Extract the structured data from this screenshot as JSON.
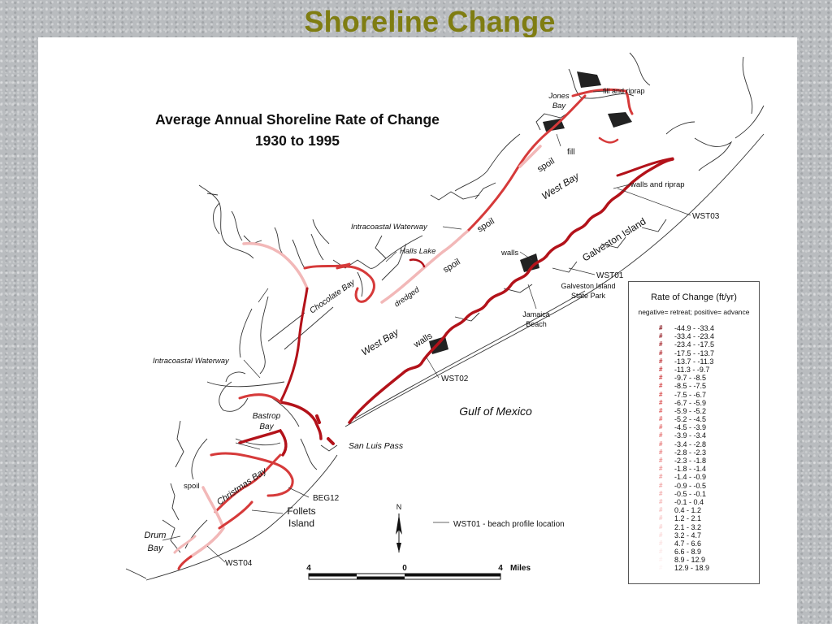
{
  "slide_title": "Shoreline Change",
  "map": {
    "title_line1": "Average Annual Shoreline Rate of Change",
    "title_line2": "1930 to 1995",
    "labels": {
      "jones_bay_1": "Jones",
      "jones_bay_2": "Bay",
      "fill_riprap": "fill and riprap",
      "fill": "fill",
      "spoil_1": "spoil",
      "west_bay_upper": "West Bay",
      "walls_riprap": "walls and riprap",
      "wst03": "WST03",
      "galveston_island": "Galveston Island",
      "spoil_2": "spoil",
      "intracoastal_upper": "Intracoastal Waterway",
      "halls_lake": "Halls Lake",
      "walls_1": "walls",
      "spoil_3": "spoil",
      "wst01": "WST01",
      "gi_state_park_1": "Galveston Island",
      "gi_state_park_2": "State Park",
      "chocolate_bay": "Chocolate Bay",
      "dredged": "dredged",
      "jamaica_1": "Jamaica",
      "jamaica_2": "Beach",
      "west_bay_lower": "West Bay",
      "walls_2": "walls",
      "intracoastal_lower": "Intracoastal Waterway",
      "wst02": "WST02",
      "gulf": "Gulf of Mexico",
      "bastrop_1": "Bastrop",
      "bastrop_2": "Bay",
      "san_luis": "San Luis Pass",
      "christmas_bay": "Christmas Bay",
      "spoil_4": "spoil",
      "beg12": "BEG12",
      "follets_1": "Follets",
      "follets_2": "Island",
      "drum_1": "Drum",
      "drum_2": "Bay",
      "wst04": "WST04",
      "north": "N",
      "profile_note": "WST01 - beach profile location"
    },
    "scale_bar": {
      "left": "4",
      "mid": "0",
      "right": "4",
      "unit": "Miles"
    },
    "colors": {
      "retreat_strong": "#b3121a",
      "retreat": "#d63a3a",
      "advance": "#f2b8b8",
      "land_line": "#333333"
    }
  },
  "legend": {
    "title": "Rate of Change (ft/yr)",
    "subtitle": "negative= retreat; positive= advance",
    "symbol": "#",
    "classes": [
      {
        "range": "-44.9 - -33.4",
        "color": "#7a0008"
      },
      {
        "range": "-33.4 - -23.4",
        "color": "#8c0a12"
      },
      {
        "range": "-23.4 - -17.5",
        "color": "#9e141b"
      },
      {
        "range": "-17.5 - -13.7",
        "color": "#ae1c22"
      },
      {
        "range": "-13.7 - -11.3",
        "color": "#bb2429"
      },
      {
        "range": "-11.3 - -9.7",
        "color": "#c52c30"
      },
      {
        "range": "-9.7 - -8.5",
        "color": "#cc3336"
      },
      {
        "range": "-8.5 - -7.5",
        "color": "#d23a3c"
      },
      {
        "range": "-7.5 - -6.7",
        "color": "#d64243"
      },
      {
        "range": "-6.7 - -5.9",
        "color": "#da4a4a"
      },
      {
        "range": "-5.9 - -5.2",
        "color": "#dd5252"
      },
      {
        "range": "-5.2 - -4.5",
        "color": "#e05a5a"
      },
      {
        "range": "-4.5 - -3.9",
        "color": "#e26262"
      },
      {
        "range": "-3.9 - -3.4",
        "color": "#e46a6a"
      },
      {
        "range": "-3.4 - -2.8",
        "color": "#e67272"
      },
      {
        "range": "-2.8 - -2.3",
        "color": "#e87b7b"
      },
      {
        "range": "-2.3 - -1.8",
        "color": "#ea8484"
      },
      {
        "range": "-1.8 - -1.4",
        "color": "#ec8d8d"
      },
      {
        "range": "-1.4 - -0.9",
        "color": "#ee9696"
      },
      {
        "range": "-0.9 - -0.5",
        "color": "#f0a0a0"
      },
      {
        "range": "-0.5 - -0.1",
        "color": "#f2a9a9"
      },
      {
        "range": "-0.1 - 0.4",
        "color": "#f4b3b3"
      },
      {
        "range": "0.4 - 1.2",
        "color": "#f5bcbc"
      },
      {
        "range": "1.2 - 2.1",
        "color": "#f7c5c5"
      },
      {
        "range": "2.1 - 3.2",
        "color": "#f8cece"
      },
      {
        "range": "3.2 - 4.7",
        "color": "#fad7d7"
      },
      {
        "range": "4.7 - 6.6",
        "color": "#fbe0e0"
      },
      {
        "range": "6.6 - 8.9",
        "color": "#fce8e8"
      },
      {
        "range": "8.9 - 12.9",
        "color": "#fdefef"
      },
      {
        "range": "12.9 - 18.9",
        "color": "#fef5f5"
      }
    ]
  }
}
